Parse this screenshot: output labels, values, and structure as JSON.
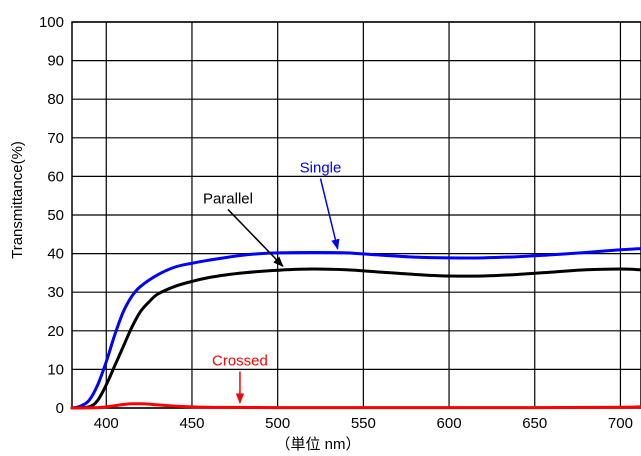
{
  "chart_data": {
    "type": "line",
    "ylabel": "Transmittance(%)",
    "xlabel": "（単位 nm）",
    "xlim": [
      380,
      712
    ],
    "ylim": [
      0,
      100
    ],
    "x_ticks": [
      400,
      450,
      500,
      550,
      600,
      650,
      700
    ],
    "y_ticks": [
      0,
      10,
      20,
      30,
      40,
      50,
      60,
      70,
      80,
      90,
      100
    ],
    "grid": true,
    "series": [
      {
        "name": "Single",
        "color": "#0000ff",
        "x": [
          380,
          385,
          390,
          395,
          400,
          405,
          410,
          415,
          420,
          430,
          440,
          450,
          460,
          470,
          480,
          490,
          500,
          520,
          540,
          560,
          580,
          600,
          620,
          640,
          660,
          680,
          700,
          712
        ],
        "y": [
          0,
          0.5,
          2,
          6,
          12,
          19,
          25,
          29,
          31.5,
          34.5,
          36.5,
          37.5,
          38.3,
          39,
          39.6,
          40,
          40.2,
          40.3,
          40.2,
          39.6,
          39.1,
          38.9,
          38.9,
          39.2,
          39.7,
          40.3,
          41,
          41.3
        ]
      },
      {
        "name": "Parallel",
        "color": "#000000",
        "x": [
          380,
          390,
          395,
          400,
          405,
          410,
          415,
          420,
          425,
          430,
          440,
          450,
          460,
          470,
          480,
          490,
          500,
          520,
          540,
          560,
          580,
          600,
          620,
          640,
          660,
          680,
          700,
          712
        ],
        "y": [
          0,
          0.3,
          2,
          6,
          11,
          16,
          21,
          25,
          27.5,
          29.5,
          31.5,
          32.8,
          33.8,
          34.5,
          35,
          35.4,
          35.7,
          36,
          35.8,
          35.2,
          34.6,
          34.2,
          34.2,
          34.6,
          35.2,
          35.8,
          36,
          35.8
        ]
      },
      {
        "name": "Crossed",
        "color": "#ff0000",
        "x": [
          380,
          395,
          400,
          405,
          410,
          415,
          420,
          425,
          430,
          440,
          450,
          470,
          500,
          550,
          600,
          650,
          700,
          712
        ],
        "y": [
          0,
          0.1,
          0.3,
          0.6,
          0.9,
          1.1,
          1.1,
          1.0,
          0.8,
          0.5,
          0.3,
          0.15,
          0.1,
          0.1,
          0.1,
          0.1,
          0.2,
          0.3
        ]
      }
    ],
    "annotations": [
      {
        "text": "Single",
        "color": "#0000ff",
        "arrow_to": [
          535,
          40.2
        ],
        "label_at": [
          525,
          61
        ]
      },
      {
        "text": "Parallel",
        "color": "#000000",
        "arrow_to": [
          503,
          35.7
        ],
        "label_at": [
          471,
          53
        ]
      },
      {
        "text": "Crossed",
        "color": "#ff0000",
        "arrow_to": [
          478,
          0.3
        ],
        "label_at": [
          478,
          11
        ]
      }
    ]
  }
}
